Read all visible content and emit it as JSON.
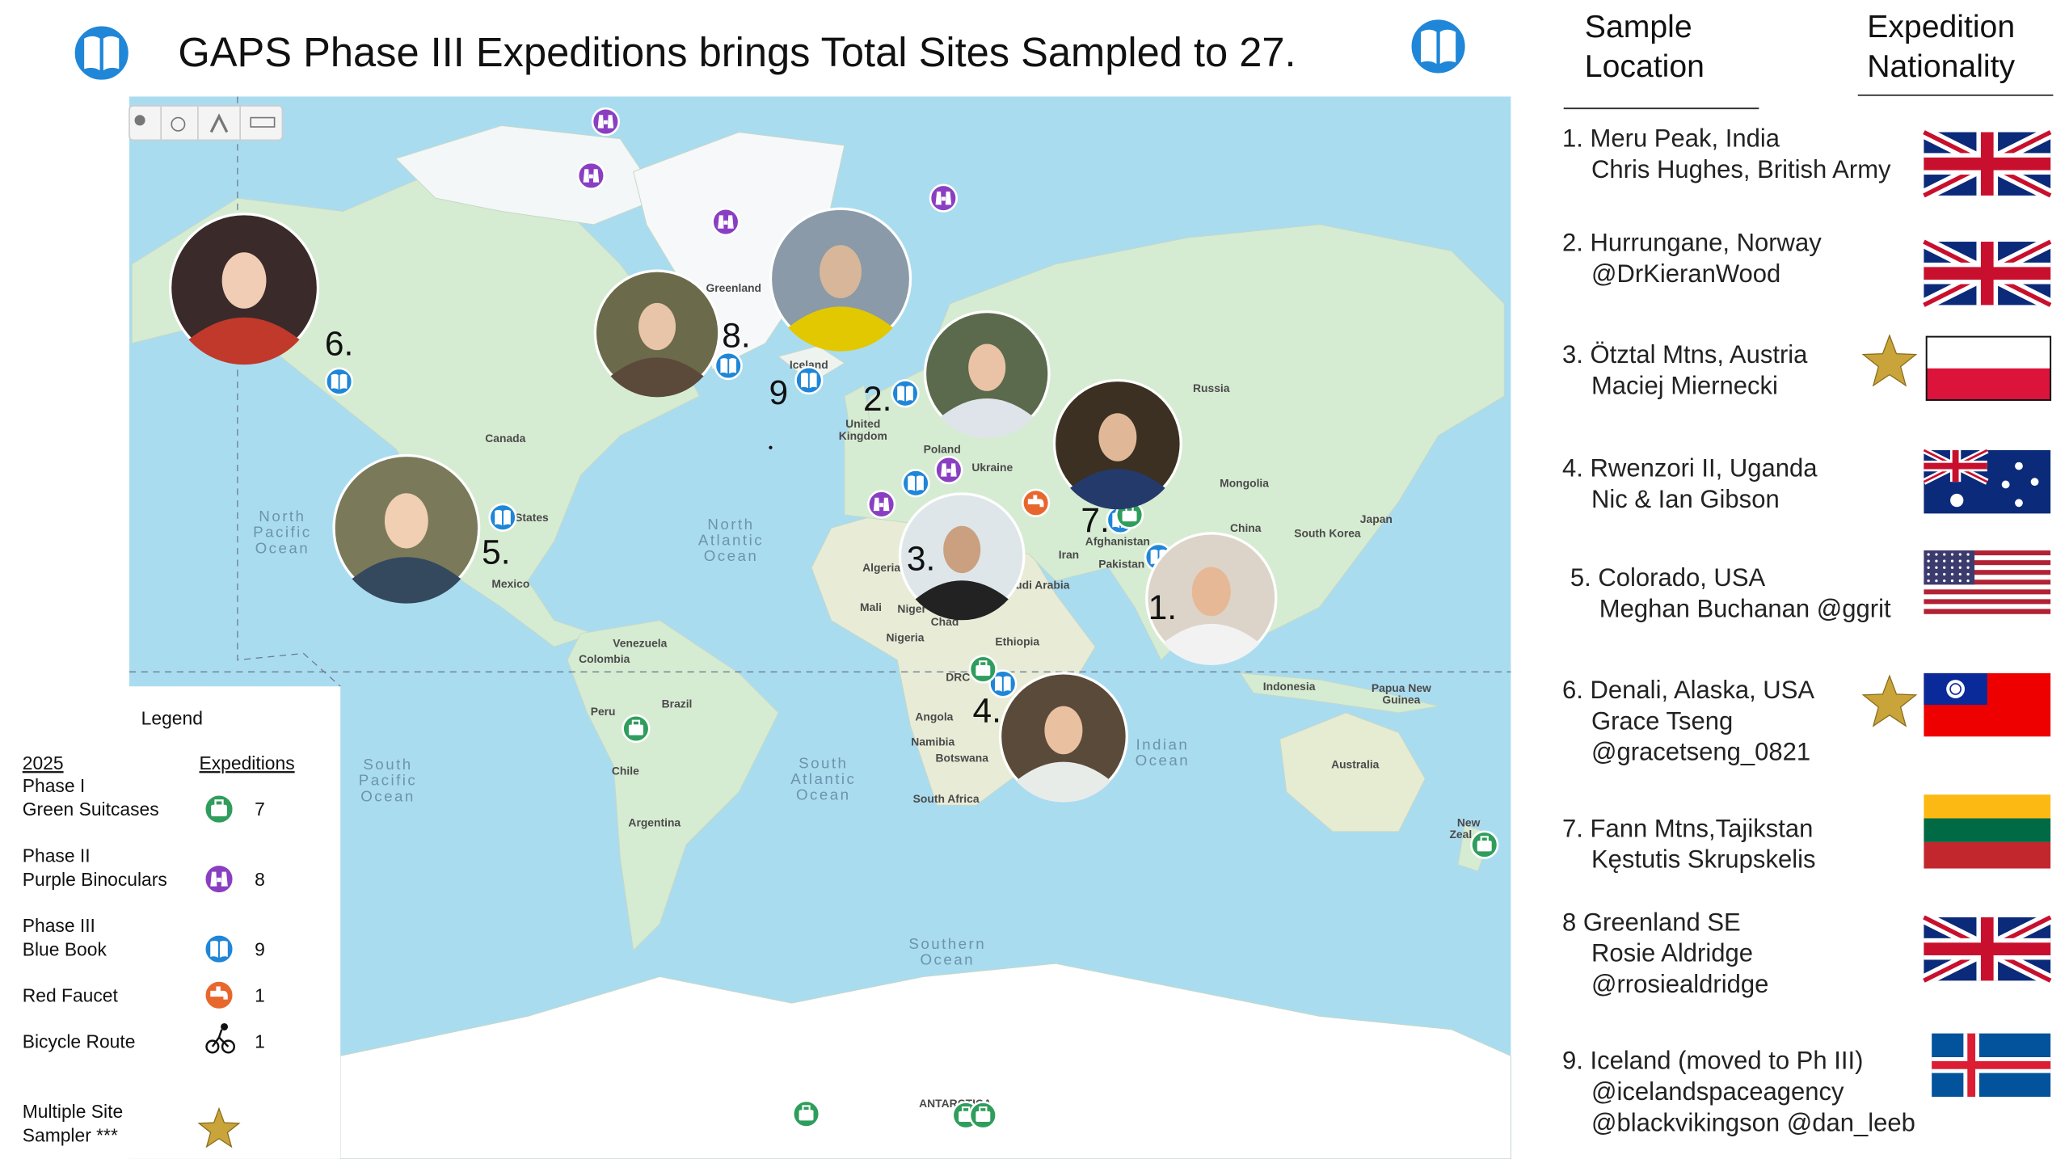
{
  "header": {
    "title": "GAPS Phase III Expeditions brings Total Sites Sampled to 27."
  },
  "map": {
    "places": [
      "Greenland",
      "Canada",
      "States",
      "Mexico",
      "Iceland",
      "Russia",
      "United",
      "Kingdom",
      "Poland",
      "Ukraine",
      "Mongolia",
      "China",
      "South Korea",
      "Japan",
      "Afghanistan",
      "Iran",
      "Pakistan",
      "udi Arabia",
      "Algeria",
      "Mali",
      "Niger",
      "Chad",
      "Nigeria",
      "Ethiopia",
      "DRC",
      "Angola",
      "Namibia",
      "Botswana",
      "South Africa",
      "Indonesia",
      "Papua New",
      "Guinea",
      "Australia",
      "New",
      "Zeal",
      "Venezuela",
      "Colombia",
      "Peru",
      "Brazil",
      "Chile",
      "Argentina",
      "ANTARCTICA"
    ],
    "oceans": [
      [
        "North",
        "Pacific",
        "Ocean"
      ],
      [
        "North",
        "Atlantic",
        "Ocean"
      ],
      [
        "Indian",
        "Ocean"
      ],
      [
        "South",
        "Pacific",
        "Ocean"
      ],
      [
        "South",
        "Atlantic",
        "Ocean"
      ],
      [
        "Southern",
        "Ocean"
      ]
    ],
    "site_numbers": [
      "6.",
      "8.",
      "9",
      "2.",
      "5.",
      "3.",
      "7.",
      "1.",
      "4."
    ]
  },
  "legend": {
    "title": "Legend",
    "header": [
      "2025",
      "Expeditions"
    ],
    "rows": [
      {
        "label": [
          "Phase I",
          "Green Suitcases"
        ],
        "count": 7
      },
      {
        "label": [
          "Phase II",
          "Purple Binoculars"
        ],
        "count": 8
      },
      {
        "label": [
          "Phase III",
          "Blue Book"
        ],
        "count": 9
      },
      {
        "label": [
          "Red Faucet"
        ],
        "count": 1
      },
      {
        "label": [
          "Bicycle Route"
        ],
        "count": 1
      },
      {
        "label": [
          "Multiple Site",
          "Sampler ***"
        ]
      }
    ]
  },
  "sidebar": {
    "headers": [
      [
        "Sample",
        "Location"
      ],
      [
        "Expedition",
        "Nationality"
      ]
    ],
    "entries": [
      [
        "1. Meru Peak, India",
        "Chris Hughes, British Army"
      ],
      [
        "2. Hurrungane, Norway",
        "@DrKieranWood"
      ],
      [
        "3. Ötztal Mtns, Austria",
        "Maciej Miernecki"
      ],
      [
        "4. Rwenzori II, Uganda",
        "Nic & Ian Gibson"
      ],
      [
        "5. Colorado, USA",
        "Meghan Buchanan @ggrit"
      ],
      [
        "6. Denali, Alaska, USA",
        "Grace Tseng",
        "@gracetseng_0821"
      ],
      [
        "7. Fann Mtns,Tajikstan",
        "Kęstutis Skrupskelis"
      ],
      [
        "8  Greenland SE",
        "Rosie Aldridge",
        "@rrosiealdridge"
      ],
      [
        "9. Iceland (moved to Ph III)",
        "@icelandspaceagency",
        "@blackvikingson @dan_leeb"
      ]
    ]
  }
}
